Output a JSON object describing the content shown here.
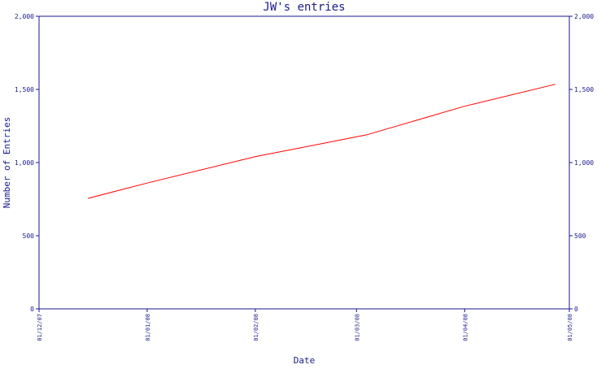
{
  "chart_data": {
    "type": "line",
    "title": "JW's entries",
    "xlabel": "Date",
    "ylabel": "Number of Entries",
    "x_domain": [
      "2007-12-01",
      "2008-05-01"
    ],
    "x_tick_dates": [
      "2007-12-01",
      "2008-01-01",
      "2008-02-01",
      "2008-03-01",
      "2008-04-01",
      "2008-05-01"
    ],
    "x_tick_labels": [
      "01/12/07",
      "01/01/08",
      "01/02/08",
      "01/03/08",
      "01/04/08",
      "01/05/08"
    ],
    "ylim": [
      0,
      2000
    ],
    "y_ticks": [
      0,
      500,
      1000,
      1500,
      2000
    ],
    "y_tick_labels": [
      "0",
      "500",
      "1,000",
      "1,500",
      "2,000"
    ],
    "y_axis_right": true,
    "grid": false,
    "series": [
      {
        "color": "#ff0000",
        "points": [
          {
            "x": "2007-12-15",
            "y": 755
          },
          {
            "x": "2008-01-01",
            "y": 860
          },
          {
            "x": "2008-02-01",
            "y": 1040
          },
          {
            "x": "2008-03-04",
            "y": 1190
          },
          {
            "x": "2008-04-01",
            "y": 1385
          },
          {
            "x": "2008-04-27",
            "y": 1535
          }
        ]
      }
    ],
    "colors": {
      "axis": "#1a1a8c",
      "text": "#1a1a8c",
      "line": "#ff0000",
      "background": "#ffffff"
    }
  }
}
